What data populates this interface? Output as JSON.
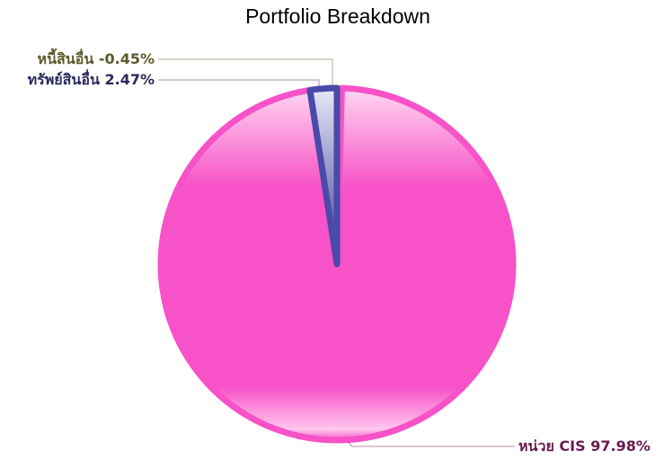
{
  "chart_data": {
    "type": "pie",
    "title": "Portfolio Breakdown",
    "categories": [
      "หนี้สินอื่น",
      "หน่วย CIS",
      "ทรัพย์สินอื่น"
    ],
    "values": [
      -0.45,
      97.98,
      2.47
    ],
    "value_labels": [
      "-0.45%",
      "97.98%",
      "2.47%"
    ],
    "colors": [
      "#e8c840",
      "#f752c8",
      "#4a4aa8"
    ]
  }
}
